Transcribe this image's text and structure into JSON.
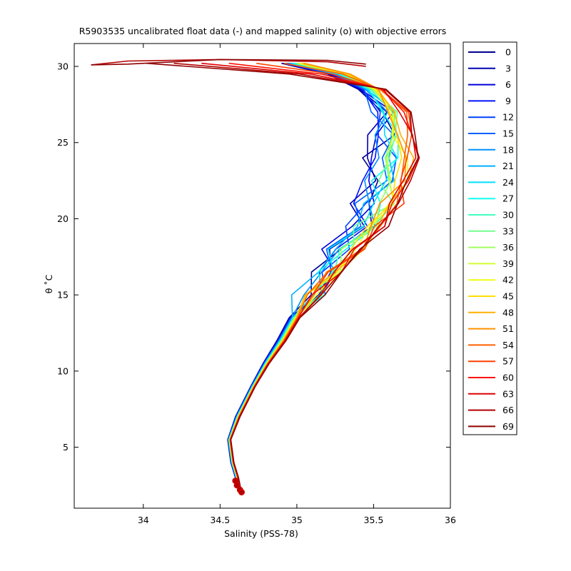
{
  "chart_data": {
    "type": "line",
    "title": "R5903535 uncalibrated float data (-) and mapped salinity (o) with objective errors",
    "xlabel": "Salinity (PSS-78)",
    "ylabel": "θ ˚C",
    "xlim": [
      33.55,
      36.0
    ],
    "ylim": [
      1.0,
      31.5
    ],
    "xticks": [
      34,
      34.5,
      35,
      35.5,
      36
    ],
    "xtick_labels": [
      "34",
      "34.5",
      "35",
      "35.5",
      "36"
    ],
    "yticks": [
      5,
      10,
      15,
      20,
      25,
      30
    ],
    "ytick_labels": [
      "5",
      "10",
      "15",
      "20",
      "25",
      "30"
    ],
    "grid": false,
    "legend_position": "outside-right",
    "colormap": "jet",
    "series": [
      {
        "name": "0",
        "color": "#00008f"
      },
      {
        "name": "3",
        "color": "#0000b3"
      },
      {
        "name": "6",
        "color": "#0000df"
      },
      {
        "name": "9",
        "color": "#0010ff"
      },
      {
        "name": "12",
        "color": "#0040ff"
      },
      {
        "name": "15",
        "color": "#0060ff"
      },
      {
        "name": "18",
        "color": "#0090ff"
      },
      {
        "name": "21",
        "color": "#00b0ff"
      },
      {
        "name": "24",
        "color": "#00dfff"
      },
      {
        "name": "27",
        "color": "#10ffef"
      },
      {
        "name": "30",
        "color": "#40ffbf"
      },
      {
        "name": "33",
        "color": "#70ff8f"
      },
      {
        "name": "36",
        "color": "#9fff60"
      },
      {
        "name": "39",
        "color": "#cfff30"
      },
      {
        "name": "42",
        "color": "#efff10"
      },
      {
        "name": "45",
        "color": "#ffdf00"
      },
      {
        "name": "48",
        "color": "#ffb000"
      },
      {
        "name": "51",
        "color": "#ff9000"
      },
      {
        "name": "54",
        "color": "#ff6000"
      },
      {
        "name": "57",
        "color": "#ff4000"
      },
      {
        "name": "60",
        "color": "#ff1000"
      },
      {
        "name": "63",
        "color": "#df0000"
      },
      {
        "name": "66",
        "color": "#b30000"
      },
      {
        "name": "69",
        "color": "#8f0000"
      }
    ],
    "profile_shape": {
      "theta": [
        2.0,
        3.0,
        4.0,
        5.5,
        7.0,
        9.0,
        10.5,
        12.0,
        13.5,
        15.0,
        16.5,
        18.0,
        19.5,
        21.0,
        22.5,
        24.0,
        25.5,
        27.0,
        28.5,
        29.5,
        30.2
      ],
      "cold_side_salinity": [
        34.64,
        34.6,
        34.57,
        34.55,
        34.6,
        34.7,
        34.78,
        34.87,
        34.95,
        35.05,
        35.15,
        35.25,
        35.35,
        35.42,
        35.48,
        35.52,
        35.53,
        35.5,
        35.4,
        35.2,
        34.9
      ],
      "warm_side_salinity": [
        34.64,
        34.62,
        34.59,
        34.57,
        34.63,
        34.73,
        34.82,
        34.93,
        35.02,
        35.14,
        35.28,
        35.42,
        35.56,
        35.68,
        35.76,
        35.8,
        35.78,
        35.7,
        35.58,
        35.4,
        35.1
      ]
    }
  }
}
